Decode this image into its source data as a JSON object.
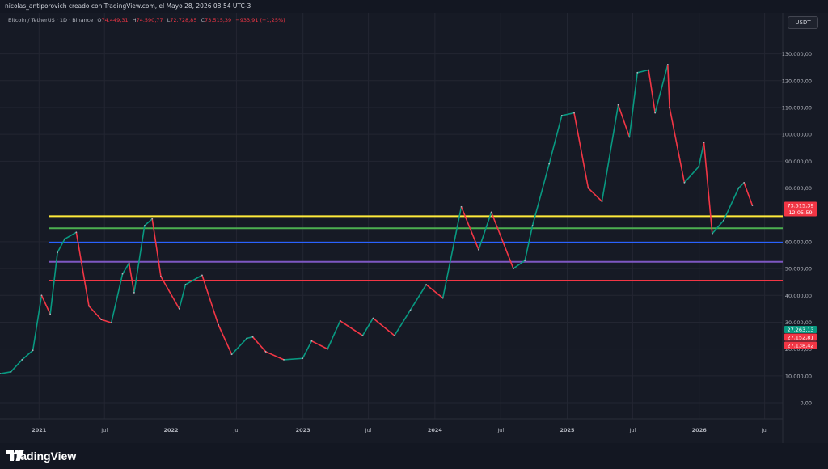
{
  "header": {
    "credit": "nicolas_antiporovich creado con TradingView.com, el Mayo 28, 2026 08:54 UTC-3"
  },
  "legend": {
    "symbol": "Bitcoin / TetherUS · 1D · Binance",
    "open_label": "O",
    "open": "74.449,31",
    "high_label": "H",
    "high": "74.590,77",
    "low_label": "L",
    "low": "72.728,85",
    "close_label": "C",
    "close": "73.515,39",
    "change": "−933,91 (−1,25%)"
  },
  "currency_button": "USDT",
  "footer": {
    "brand": "TradingView"
  },
  "colors": {
    "up": "#089981",
    "down": "#f23645",
    "background": "#161a25",
    "grid": "#232632"
  },
  "chart_data": {
    "type": "line",
    "ylim": [
      0,
      135000
    ],
    "y_ticks": [
      {
        "value": 130000,
        "label": "130.000,00"
      },
      {
        "value": 120000,
        "label": "120.000,00"
      },
      {
        "value": 110000,
        "label": "110.000,00"
      },
      {
        "value": 100000,
        "label": "100.000,00"
      },
      {
        "value": 90000,
        "label": "90.000,00"
      },
      {
        "value": 80000,
        "label": "80.000,00"
      },
      {
        "value": 60000,
        "label": "60.000,00"
      },
      {
        "value": 50000,
        "label": "50.000,00"
      },
      {
        "value": 40000,
        "label": "40.000,00"
      },
      {
        "value": 30000,
        "label": "30.000,00"
      },
      {
        "value": 20000,
        "label": "20.000,00"
      },
      {
        "value": 10000,
        "label": "10.000,00"
      },
      {
        "value": 0,
        "label": "0,00"
      }
    ],
    "x_ticks": [
      {
        "label": "2021",
        "date": "2021-01-01"
      },
      {
        "label": "Jul",
        "date": "2021-07-01"
      },
      {
        "label": "2022",
        "date": "2022-01-01"
      },
      {
        "label": "Jul",
        "date": "2022-07-01"
      },
      {
        "label": "2023",
        "date": "2023-01-01"
      },
      {
        "label": "Jul",
        "date": "2023-07-01"
      },
      {
        "label": "2024",
        "date": "2024-01-01"
      },
      {
        "label": "Jul",
        "date": "2024-07-01"
      },
      {
        "label": "2025",
        "date": "2025-01-01"
      },
      {
        "label": "Jul",
        "date": "2025-07-01"
      },
      {
        "label": "2026",
        "date": "2026-01-01"
      },
      {
        "label": "Jul",
        "date": "2026-07-01"
      }
    ],
    "xlim": [
      "2020-09-15",
      "2026-08-20"
    ],
    "series": [
      {
        "points": [
          [
            "2020-09-15",
            10800
          ],
          [
            "2020-10-15",
            11500
          ],
          [
            "2020-11-15",
            16000
          ],
          [
            "2020-12-15",
            19500
          ],
          [
            "2021-01-08",
            40000
          ],
          [
            "2021-02-01",
            33000
          ],
          [
            "2021-02-21",
            56000
          ],
          [
            "2021-03-13",
            61000
          ],
          [
            "2021-04-14",
            63500
          ],
          [
            "2021-05-19",
            36000
          ],
          [
            "2021-06-22",
            31000
          ],
          [
            "2021-07-20",
            29800
          ],
          [
            "2021-08-20",
            48000
          ],
          [
            "2021-09-07",
            52000
          ],
          [
            "2021-09-21",
            41000
          ],
          [
            "2021-10-20",
            66000
          ],
          [
            "2021-11-10",
            68500
          ],
          [
            "2021-12-04",
            47000
          ],
          [
            "2022-01-24",
            35000
          ],
          [
            "2022-02-10",
            44000
          ],
          [
            "2022-03-28",
            47500
          ],
          [
            "2022-05-12",
            29000
          ],
          [
            "2022-06-18",
            18000
          ],
          [
            "2022-07-30",
            24000
          ],
          [
            "2022-08-15",
            24500
          ],
          [
            "2022-09-20",
            19000
          ],
          [
            "2022-11-09",
            16000
          ],
          [
            "2022-12-31",
            16500
          ],
          [
            "2023-01-25",
            23000
          ],
          [
            "2023-03-10",
            20000
          ],
          [
            "2023-04-14",
            30500
          ],
          [
            "2023-06-15",
            25000
          ],
          [
            "2023-07-14",
            31500
          ],
          [
            "2023-09-11",
            25000
          ],
          [
            "2023-10-25",
            34500
          ],
          [
            "2023-12-08",
            44000
          ],
          [
            "2024-01-23",
            39000
          ],
          [
            "2024-03-14",
            73000
          ],
          [
            "2024-05-01",
            57000
          ],
          [
            "2024-06-05",
            71000
          ],
          [
            "2024-08-05",
            50000
          ],
          [
            "2024-09-06",
            53000
          ],
          [
            "2024-09-27",
            66000
          ],
          [
            "2024-11-12",
            89000
          ],
          [
            "2024-12-17",
            107000
          ],
          [
            "2025-01-20",
            108000
          ],
          [
            "2025-02-28",
            80000
          ],
          [
            "2025-04-07",
            75000
          ],
          [
            "2025-05-22",
            111000
          ],
          [
            "2025-06-22",
            99000
          ],
          [
            "2025-07-14",
            123000
          ],
          [
            "2025-08-14",
            124000
          ],
          [
            "2025-09-01",
            108000
          ],
          [
            "2025-10-06",
            126000
          ],
          [
            "2025-10-11",
            110000
          ],
          [
            "2025-11-21",
            82000
          ],
          [
            "2025-12-31",
            88000
          ],
          [
            "2026-01-14",
            97000
          ],
          [
            "2026-02-06",
            63000
          ],
          [
            "2026-03-10",
            68000
          ],
          [
            "2026-04-20",
            80000
          ],
          [
            "2026-05-05",
            82000
          ],
          [
            "2026-05-28",
            73515
          ]
        ]
      }
    ],
    "horizontal_lines": [
      {
        "value": 69500,
        "color": "#ffeb3b"
      },
      {
        "value": 65000,
        "color": "#4caf50"
      },
      {
        "value": 59700,
        "color": "#2962ff"
      },
      {
        "value": 52500,
        "color": "#7e57c2"
      },
      {
        "value": 45500,
        "color": "#f23645"
      }
    ],
    "price_labels": [
      {
        "value": 73515.39,
        "text": "73.515,39",
        "sub": "12:05:59",
        "color": "#f23645"
      },
      {
        "value": 27263.13,
        "text": "27.263,13",
        "color": "#089981"
      },
      {
        "value": 24400,
        "text": "27.152,81",
        "color": "#f23645"
      },
      {
        "value": 21400,
        "text": "27.138,42",
        "color": "#f23645"
      }
    ]
  }
}
